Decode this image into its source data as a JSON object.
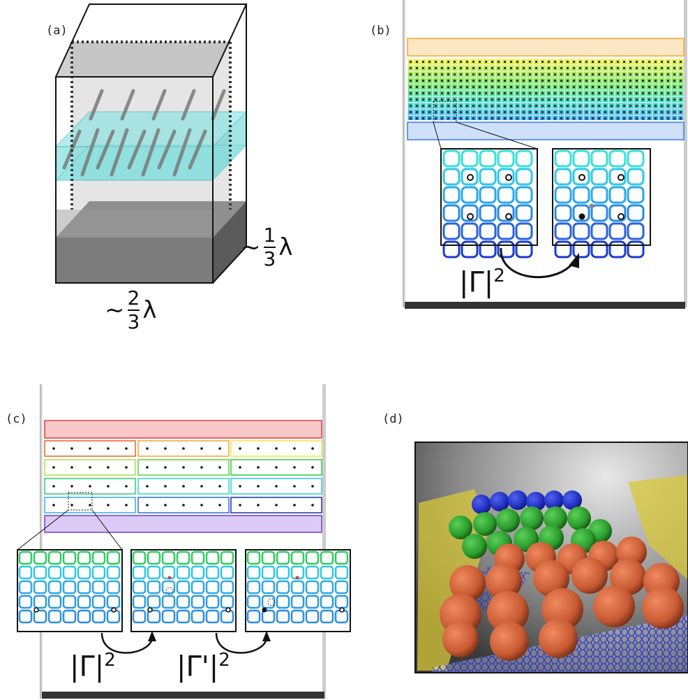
{
  "panels": {
    "a": {
      "label": "(a)",
      "width_label": {
        "tilde": "~",
        "num": "2",
        "den": "3",
        "sym": "λ"
      },
      "depth_label": {
        "tilde": "~",
        "num": "1",
        "den": "3",
        "sym": "λ"
      }
    },
    "b": {
      "label": "(b)",
      "operator": "|Γ|",
      "power": "2"
    },
    "c": {
      "label": "(c)",
      "operator1": "|Γ|",
      "power1": "2",
      "operator2": "|Γ'|",
      "power2": "2"
    },
    "d": {
      "label": "(d)"
    }
  },
  "colors": {
    "orange": "#f5a623",
    "yellow": "#e8e84a",
    "green": "#2ecc40",
    "cyan": "#31d6d6",
    "blue": "#2a7be4",
    "navy": "#1a2bd0",
    "red": "#e23b3b",
    "purple": "#7a4fd6",
    "orange_sphere": "#d4623a",
    "green_sphere": "#2e9d2e",
    "blue_sphere": "#2233cc"
  }
}
